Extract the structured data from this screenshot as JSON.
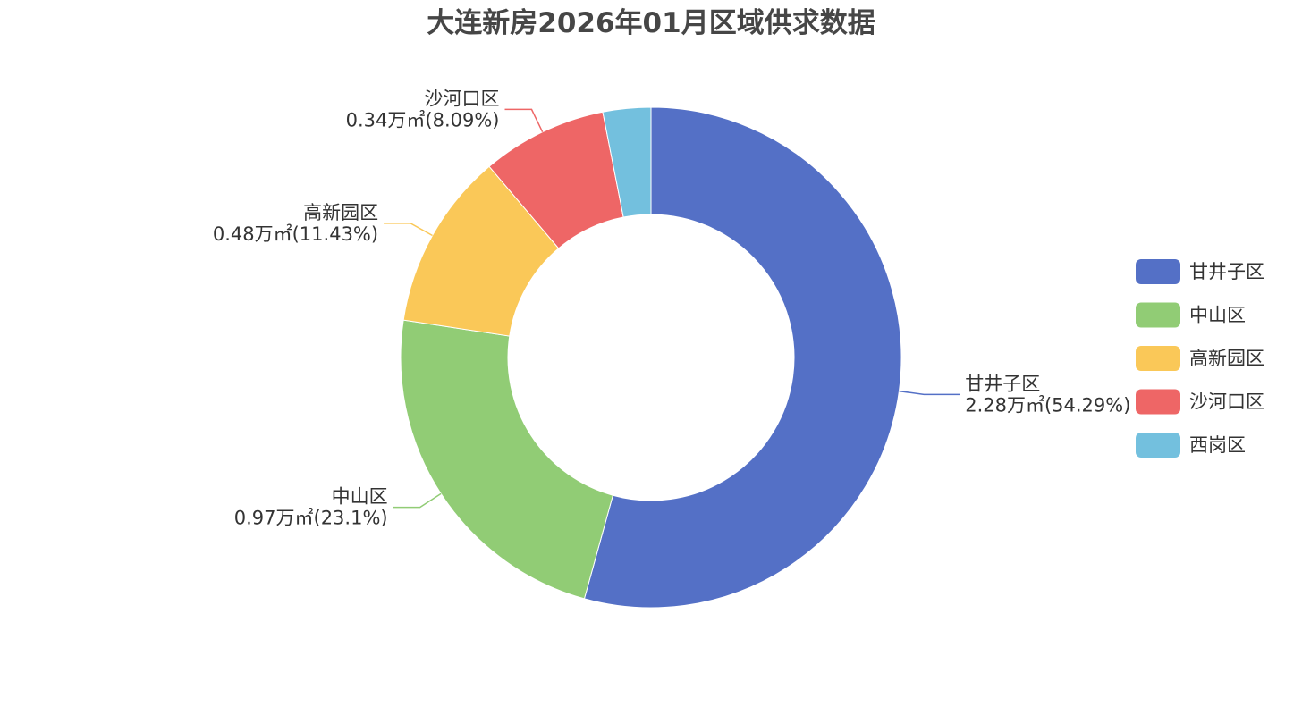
{
  "chart_data": {
    "type": "pie",
    "variant": "donut",
    "title": "大连新房2026年01月区域供求数据",
    "unit": "万㎡",
    "legend_position": "right",
    "series": [
      {
        "name": "甘井子区",
        "value": 2.28,
        "percent": 54.29,
        "color": "#5470c6",
        "label": "2.28万㎡(54.29%)"
      },
      {
        "name": "中山区",
        "value": 0.97,
        "percent": 23.1,
        "color": "#91cc75",
        "label": "0.97万㎡(23.1%)"
      },
      {
        "name": "高新园区",
        "value": 0.48,
        "percent": 11.43,
        "color": "#fac858",
        "label": "0.48万㎡(11.43%)"
      },
      {
        "name": "沙河口区",
        "value": 0.34,
        "percent": 8.09,
        "color": "#ee6666",
        "label": "0.34万㎡(8.09%)"
      },
      {
        "name": "西岗区",
        "value": 0.13,
        "percent": 3.09,
        "color": "#73c0de"
      }
    ]
  }
}
